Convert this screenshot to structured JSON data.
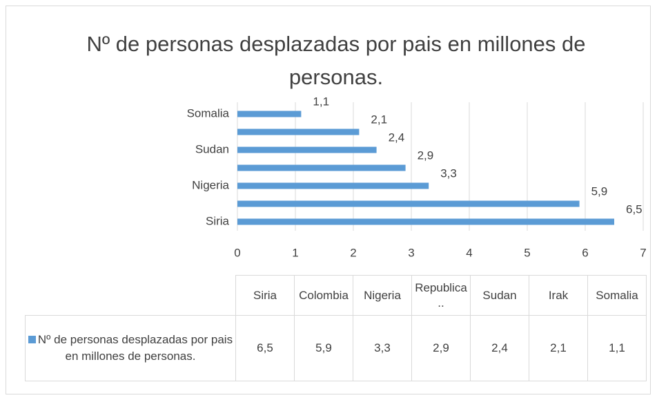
{
  "chart_data": {
    "type": "bar",
    "orientation": "horizontal",
    "title": "Nº de personas desplazadas por pais en millones de personas.",
    "categories": [
      "Siria",
      "Colombia",
      "Nigeria",
      "Republica ..",
      "Sudan",
      "Irak",
      "Somalia"
    ],
    "category_label_step": 2,
    "series": [
      {
        "name": "Nº de personas desplazadas por pais en millones de personas.",
        "color": "#5b9bd5",
        "values": [
          6.5,
          5.9,
          3.3,
          2.9,
          2.4,
          2.1,
          1.1
        ],
        "value_labels": [
          "6,5",
          "5,9",
          "3,3",
          "2,9",
          "2,4",
          "2,1",
          "1,1"
        ]
      }
    ],
    "xlim": [
      0,
      7
    ],
    "xticks": [
      0,
      1,
      2,
      3,
      4,
      5,
      6,
      7
    ],
    "grid": true,
    "data_table": true
  }
}
